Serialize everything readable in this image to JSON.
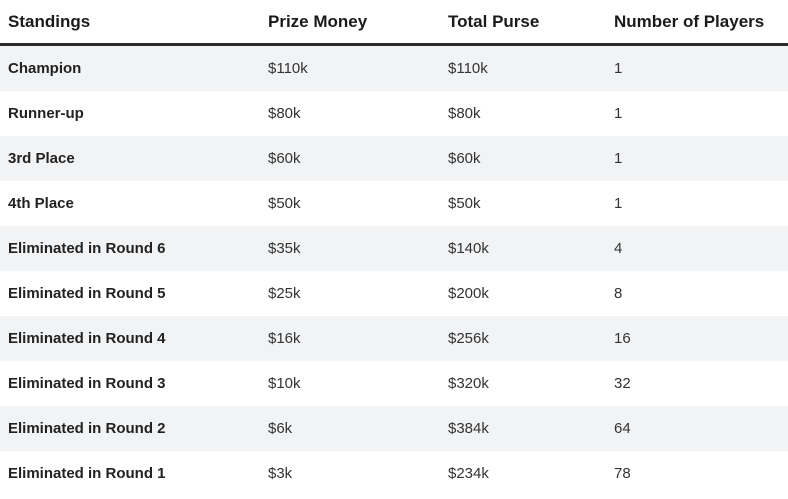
{
  "colors": {
    "header_rule": "#2b2b2b",
    "stripe_row_bg": "#f2f3f5",
    "plain_row_bg": "#ffffff",
    "header_text": "#1a1a1a",
    "label_text": "#222222",
    "value_text": "#333333"
  },
  "chart_data": {
    "type": "table",
    "columns": [
      "Standings",
      "Prize Money",
      "Total Purse",
      "Number of Players"
    ],
    "rows": [
      [
        "Champion",
        "$110k",
        "$110k",
        "1"
      ],
      [
        "Runner-up",
        "$80k",
        "$80k",
        "1"
      ],
      [
        "3rd Place",
        "$60k",
        "$60k",
        "1"
      ],
      [
        "4th Place",
        "$50k",
        "$50k",
        "1"
      ],
      [
        "Eliminated in Round 6",
        "$35k",
        "$140k",
        "4"
      ],
      [
        "Eliminated in Round 5",
        "$25k",
        "$200k",
        "8"
      ],
      [
        "Eliminated in Round 4",
        "$16k",
        "$256k",
        "16"
      ],
      [
        "Eliminated in Round 3",
        "$10k",
        "$320k",
        "32"
      ],
      [
        "Eliminated in Round 2",
        "$6k",
        "$384k",
        "64"
      ],
      [
        "Eliminated in Round 1",
        "$3k",
        "$234k",
        "78"
      ]
    ],
    "prize_money_values_k": [
      110,
      80,
      60,
      50,
      35,
      25,
      16,
      10,
      6,
      3
    ],
    "total_purse_values_k": [
      110,
      80,
      60,
      50,
      140,
      200,
      256,
      320,
      384,
      234
    ],
    "number_of_players_values": [
      1,
      1,
      1,
      1,
      4,
      8,
      16,
      32,
      64,
      78
    ]
  }
}
